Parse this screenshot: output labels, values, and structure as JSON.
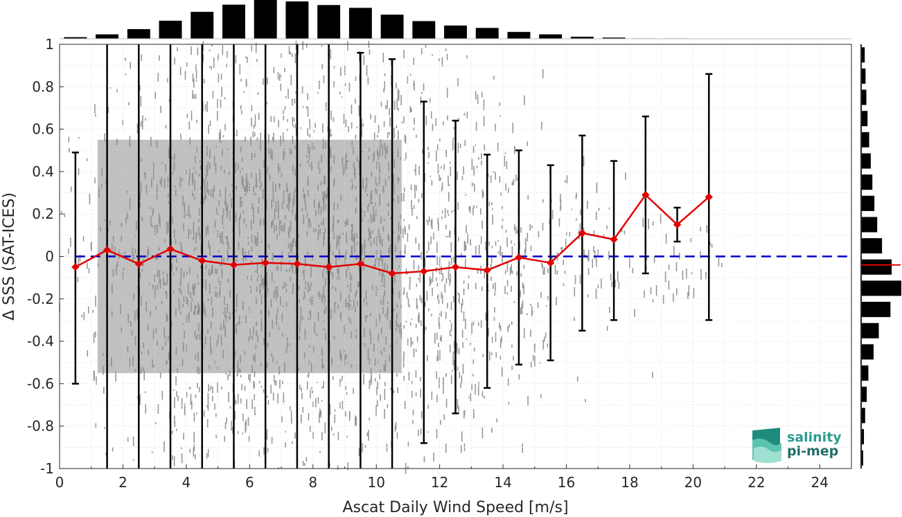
{
  "chart_data": {
    "type": "scatter",
    "xlabel": "Ascat Daily Wind Speed [m/s]",
    "ylabel": "Δ SSS (SAT-ICES)",
    "xlim": [
      0,
      25
    ],
    "ylim": [
      -1,
      1
    ],
    "x_ticks": [
      0,
      2,
      4,
      6,
      8,
      10,
      12,
      14,
      16,
      18,
      20,
      22,
      24
    ],
    "y_ticks": [
      -1,
      -0.8,
      -0.6,
      -0.4,
      -0.2,
      0,
      0.2,
      0.4,
      0.6,
      0.8,
      1
    ],
    "y_tick_labels": [
      "-1",
      "-0.8",
      "-0.6",
      "-0.4",
      "-0.2",
      "0",
      "0.2",
      "0.4",
      "0.6",
      "0.8",
      "1"
    ],
    "grid": true,
    "scatter_color": "#808080",
    "reference_line": {
      "y": 0,
      "style": "dashed",
      "color": "#0000cc"
    },
    "bin_mean": {
      "color": "#e00000",
      "marker": "diamond",
      "points": [
        {
          "x": 0.5,
          "mean": -0.05,
          "lo": -0.6,
          "hi": 0.49
        },
        {
          "x": 1.5,
          "mean": 0.03,
          "lo": -1.2,
          "hi": 1.2
        },
        {
          "x": 2.5,
          "mean": -0.035,
          "lo": -1.2,
          "hi": 1.2
        },
        {
          "x": 3.5,
          "mean": 0.035,
          "lo": -1.2,
          "hi": 1.2
        },
        {
          "x": 4.5,
          "mean": -0.02,
          "lo": -1.2,
          "hi": 1.2
        },
        {
          "x": 5.5,
          "mean": -0.04,
          "lo": -1.2,
          "hi": 1.2
        },
        {
          "x": 6.5,
          "mean": -0.03,
          "lo": -1.2,
          "hi": 1.2
        },
        {
          "x": 7.5,
          "mean": -0.035,
          "lo": -1.2,
          "hi": 1.2
        },
        {
          "x": 8.5,
          "mean": -0.05,
          "lo": -1.2,
          "hi": 1.2
        },
        {
          "x": 9.5,
          "mean": -0.035,
          "lo": -1.2,
          "hi": 0.96
        },
        {
          "x": 10.5,
          "mean": -0.08,
          "lo": -1.2,
          "hi": 0.93
        },
        {
          "x": 11.5,
          "mean": -0.07,
          "lo": -0.88,
          "hi": 0.73
        },
        {
          "x": 12.5,
          "mean": -0.05,
          "lo": -0.74,
          "hi": 0.64
        },
        {
          "x": 13.5,
          "mean": -0.065,
          "lo": -0.62,
          "hi": 0.48
        },
        {
          "x": 14.5,
          "mean": -0.005,
          "lo": -0.51,
          "hi": 0.5
        },
        {
          "x": 15.5,
          "mean": -0.03,
          "lo": -0.49,
          "hi": 0.43
        },
        {
          "x": 16.5,
          "mean": 0.11,
          "lo": -0.35,
          "hi": 0.57
        },
        {
          "x": 17.5,
          "mean": 0.08,
          "lo": -0.3,
          "hi": 0.45
        },
        {
          "x": 18.5,
          "mean": 0.29,
          "lo": -0.08,
          "hi": 0.66
        },
        {
          "x": 19.5,
          "mean": 0.15,
          "lo": 0.07,
          "hi": 0.23
        },
        {
          "x": 20.5,
          "mean": 0.28,
          "lo": -0.3,
          "hi": 0.86
        }
      ]
    },
    "top_histogram": {
      "bin_centers": [
        0.5,
        1.5,
        2.5,
        3.5,
        4.5,
        5.5,
        6.5,
        7.5,
        8.5,
        9.5,
        10.5,
        11.5,
        12.5,
        13.5,
        14.5,
        15.5,
        16.5,
        17.5,
        18.5,
        19.5
      ],
      "relative_counts": [
        0.04,
        0.11,
        0.24,
        0.45,
        0.67,
        0.85,
        1.0,
        0.93,
        0.84,
        0.77,
        0.6,
        0.44,
        0.33,
        0.27,
        0.17,
        0.11,
        0.05,
        0.03,
        0.01,
        0.01
      ]
    },
    "right_histogram": {
      "bin_centers": [
        -0.95,
        -0.85,
        -0.75,
        -0.65,
        -0.55,
        -0.45,
        -0.35,
        -0.25,
        -0.15,
        -0.05,
        0.05,
        0.15,
        0.25,
        0.35,
        0.45,
        0.55,
        0.65,
        0.75,
        0.85,
        0.95
      ],
      "relative_counts": [
        0.05,
        0.07,
        0.1,
        0.14,
        0.18,
        0.31,
        0.44,
        0.73,
        1.0,
        0.76,
        0.52,
        0.4,
        0.33,
        0.28,
        0.24,
        0.2,
        0.16,
        0.13,
        0.11,
        0.09
      ],
      "mean_line_y": -0.04,
      "mean_line_color": "#e00000"
    }
  },
  "logo": {
    "line1": "salinity",
    "line2": "pi-mep"
  }
}
